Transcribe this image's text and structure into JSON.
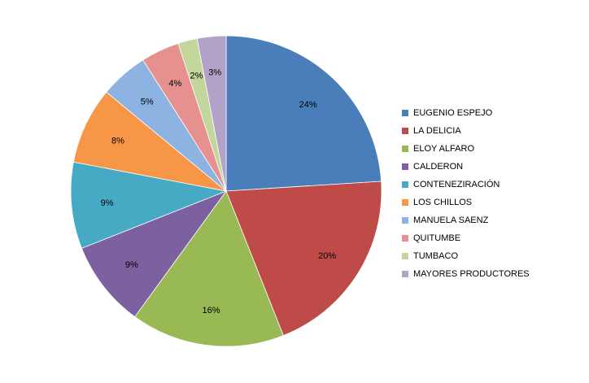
{
  "chart_data": {
    "type": "pie",
    "categories": [
      "EUGENIO ESPEJO",
      "LA DELICIA",
      "ELOY ALFARO",
      "CALDERON",
      "CONTENEZIRACIÓN",
      "LOS CHILLOS",
      "MANUELA SAENZ",
      "QUITUMBE",
      "TUMBACO",
      "MAYORES PRODUCTORES"
    ],
    "values": [
      24,
      20,
      16,
      9,
      9,
      8,
      5,
      4,
      2,
      3
    ],
    "labels": [
      "24%",
      "20%",
      "16%",
      "9%",
      "9%",
      "8%",
      "5%",
      "4%",
      "2%",
      "3%"
    ],
    "colors": [
      "#4A7EBB",
      "#BE4B48",
      "#98B954",
      "#7D60A0",
      "#46AAC5",
      "#F79646",
      "#8DB3E2",
      "#E6918F",
      "#C3D69B",
      "#B3A2C7"
    ],
    "legend_position": "right"
  }
}
